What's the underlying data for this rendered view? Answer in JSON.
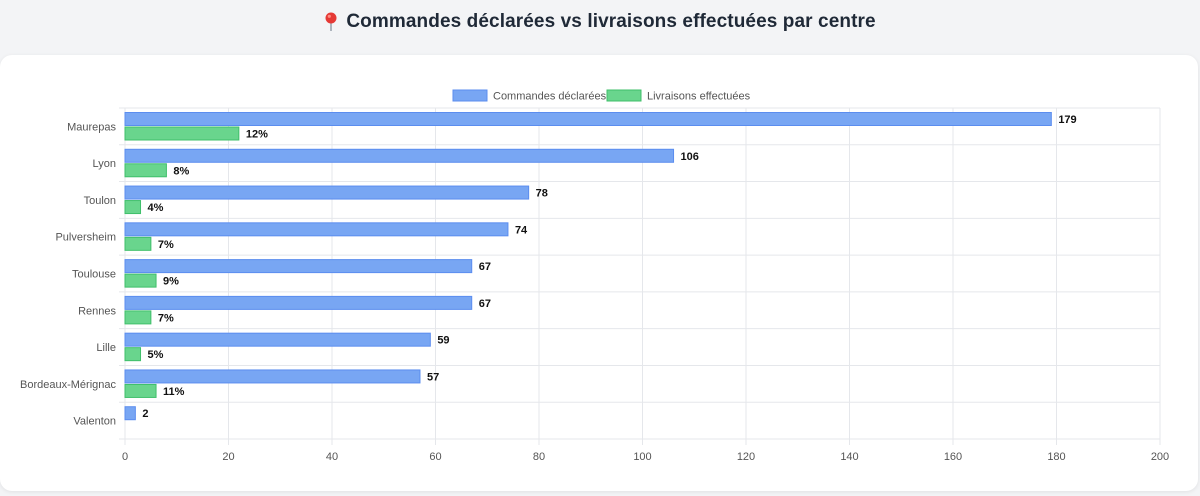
{
  "header": {
    "title": "Commandes déclarées vs livraisons effectuées par centre",
    "icon": "map-pin-icon"
  },
  "colors": {
    "series_declared": "#78a6f3",
    "series_declared_border": "#5b8def",
    "series_delivered": "#69d58d",
    "series_delivered_border": "#3fbf6a",
    "grid": "#e5e7eb",
    "axis_text": "#555555",
    "label_text": "#111111"
  },
  "chart_data": {
    "type": "bar",
    "orientation": "horizontal",
    "title": "",
    "xlabel": "",
    "ylabel": "",
    "xlim": [
      0,
      200
    ],
    "x_ticks": [
      0,
      20,
      40,
      60,
      80,
      100,
      120,
      140,
      160,
      180,
      200
    ],
    "grid": true,
    "legend": "top-center",
    "categories": [
      "Maurepas",
      "Lyon",
      "Toulon",
      "Pulversheim",
      "Toulouse",
      "Rennes",
      "Lille",
      "Bordeaux-Mérignac",
      "Valenton"
    ],
    "series": [
      {
        "name": "Commandes déclarées",
        "values": [
          179,
          106,
          78,
          74,
          67,
          67,
          59,
          57,
          2
        ],
        "labels": [
          "179",
          "106",
          "78",
          "74",
          "67",
          "67",
          "59",
          "57",
          "2"
        ]
      },
      {
        "name": "Livraisons effectuées",
        "values": [
          22,
          8,
          3,
          5,
          6,
          5,
          3,
          6,
          0
        ],
        "labels": [
          "12%",
          "8%",
          "4%",
          "7%",
          "9%",
          "7%",
          "5%",
          "11%",
          null
        ]
      }
    ]
  }
}
